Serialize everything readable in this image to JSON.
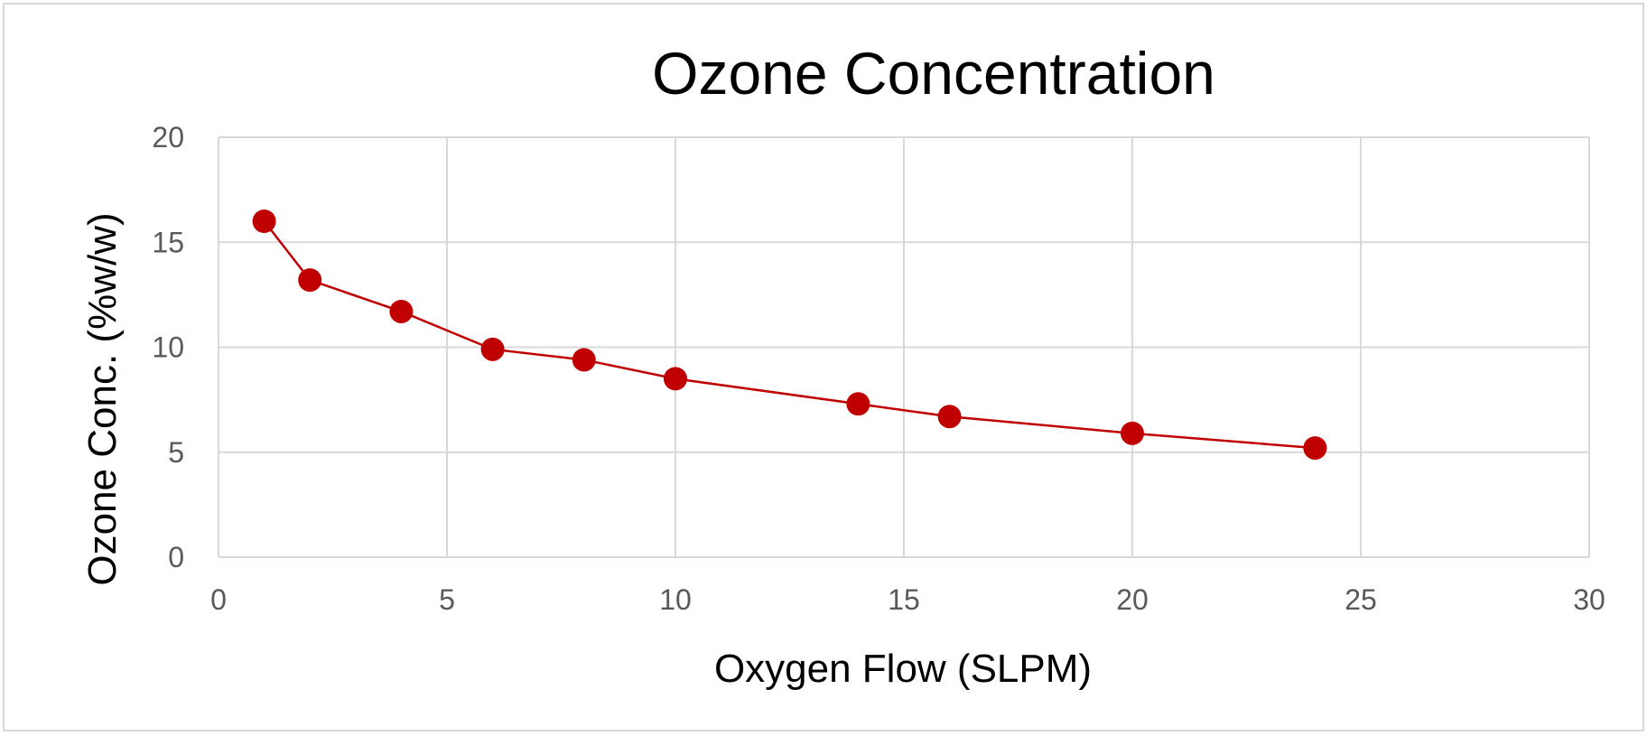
{
  "chart_data": {
    "type": "scatter",
    "title": "Ozone Concentration",
    "xlabel": "Oxygen Flow (SLPM)",
    "ylabel": "Ozone Conc. (%w/w)",
    "xlim": [
      0,
      30
    ],
    "ylim": [
      0,
      20
    ],
    "x_ticks": [
      0,
      5,
      10,
      15,
      20,
      25,
      30
    ],
    "y_ticks": [
      0,
      5,
      10,
      15,
      20
    ],
    "grid": true,
    "legend": "none",
    "lines": true,
    "series": [
      {
        "color": "#c00000",
        "x": [
          1,
          2,
          4,
          6,
          8,
          10,
          14,
          16,
          20,
          24
        ],
        "y": [
          16.0,
          13.2,
          11.7,
          9.9,
          9.4,
          8.5,
          7.3,
          6.7,
          5.9,
          5.2
        ]
      }
    ]
  }
}
